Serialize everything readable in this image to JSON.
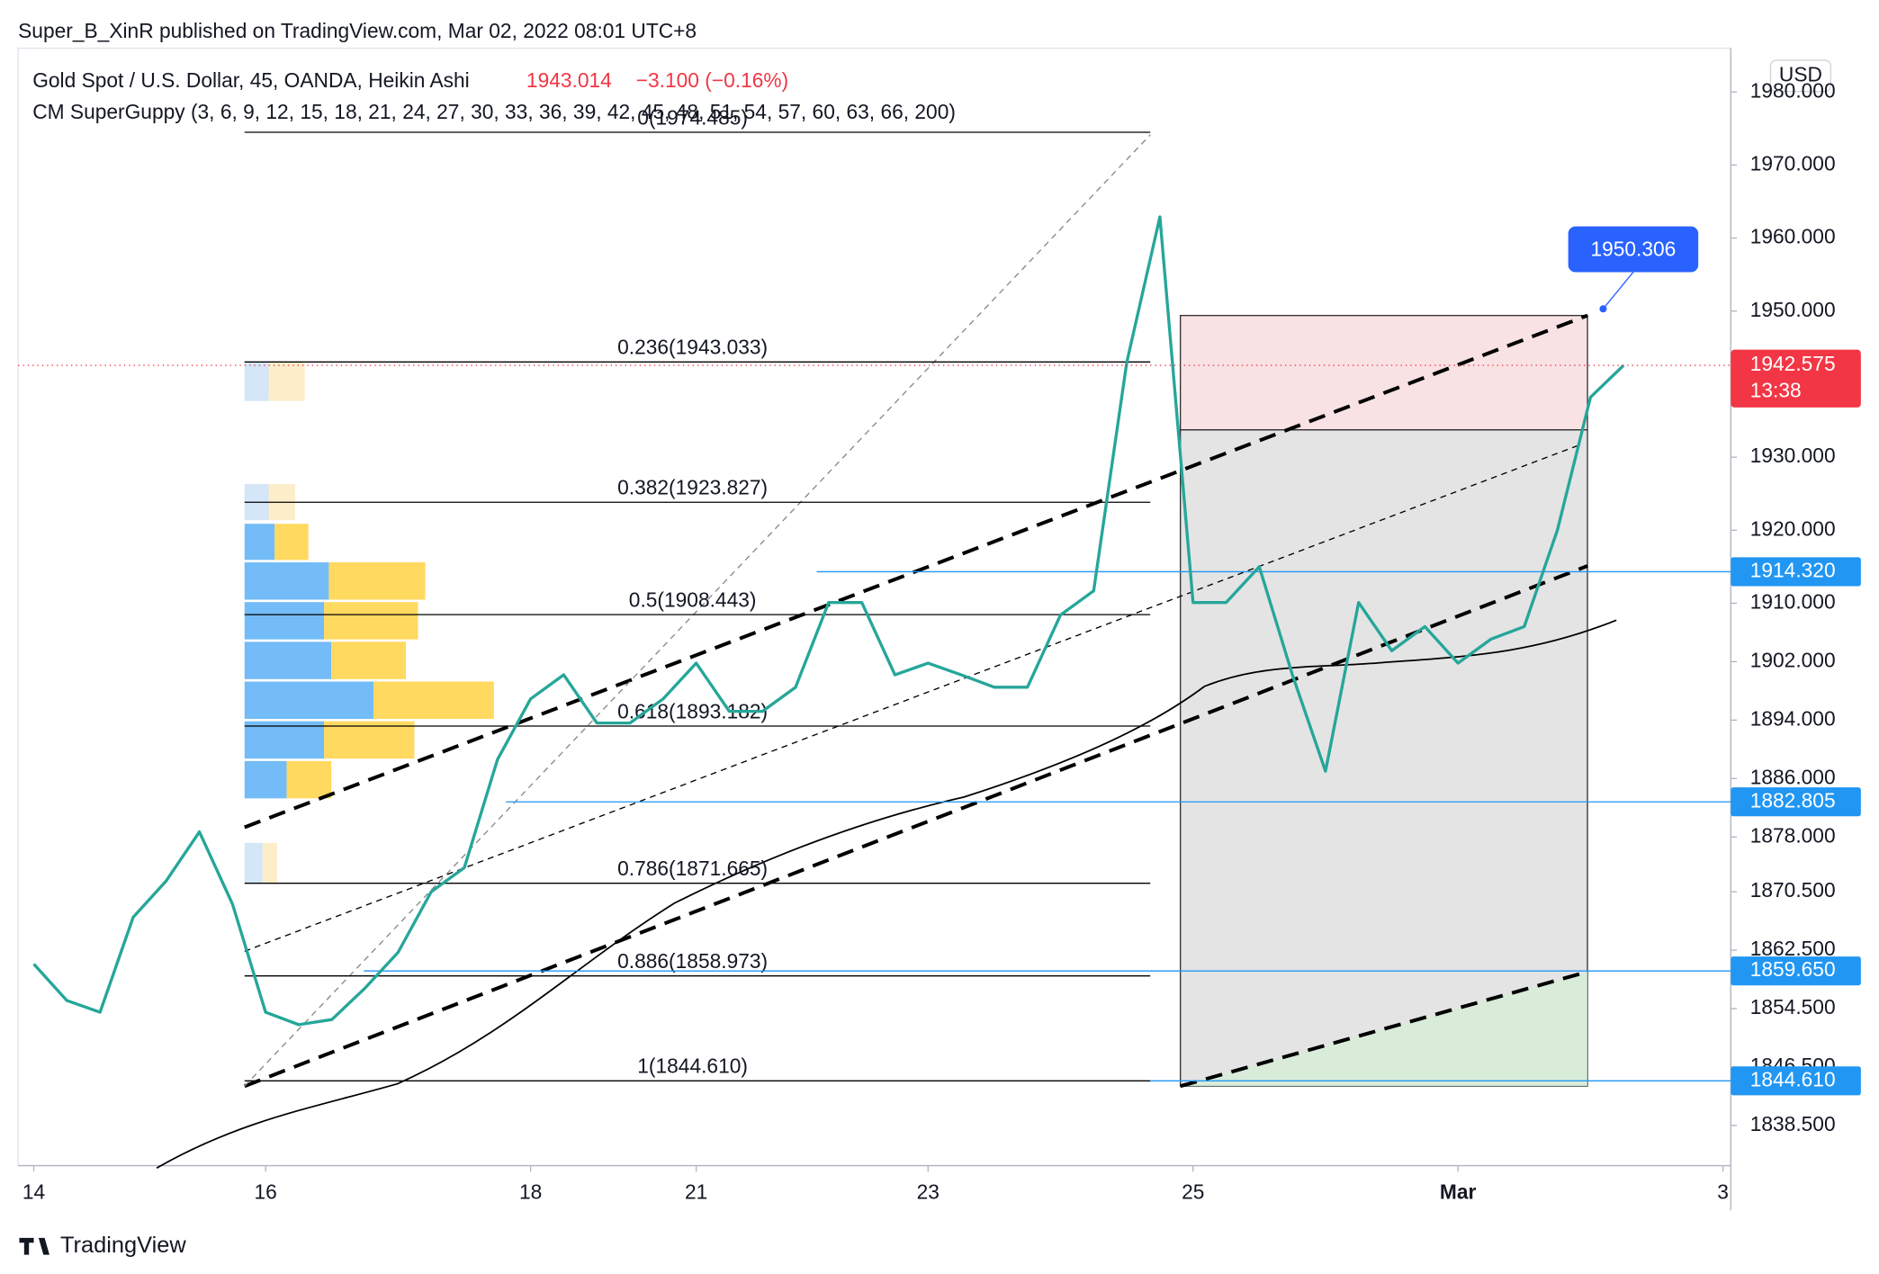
{
  "chart_data": {
    "type": "line",
    "header": "Super_B_XinR published on TradingView.com, Mar 02, 2022 08:01 UTC+8",
    "title": "Gold Spot / U.S. Dollar, 45, OANDA, Heikin Ashi",
    "price": 1943.014,
    "change": "−3.100 (−0.16%)",
    "indicator": "CM SuperGuppy (3, 6, 9, 12, 15, 18, 21, 24, 27, 30, 33, 36, 39, 42, 45, 48, 51, 54, 57, 60, 63, 66, 200)",
    "currency": "USD",
    "footer": "TradingView",
    "categories": [
      "14",
      null,
      null,
      null,
      null,
      null,
      null,
      "16",
      null,
      null,
      null,
      null,
      null,
      null,
      null,
      "18",
      null,
      null,
      null,
      null,
      "21",
      null,
      null,
      null,
      null,
      null,
      null,
      "23",
      null,
      null,
      null,
      null,
      null,
      null,
      null,
      "25",
      null,
      null,
      null,
      null,
      null,
      null,
      null,
      "Mar",
      null,
      null,
      null,
      null,
      null,
      null,
      null,
      "3"
    ],
    "values": [
      1860.6,
      1855.6,
      1854,
      1867,
      1872,
      1878.7,
      1868.8,
      1854,
      1852.3,
      1853,
      1857.3,
      1862.2,
      1870.5,
      1873.8,
      1888.6,
      1896.9,
      1900.2,
      1893.6,
      1893.6,
      1896.9,
      1901.8,
      1895.2,
      1895.2,
      1898.5,
      1910.1,
      1910.1,
      1900.2,
      1901.8,
      1900.2,
      1898.5,
      1898.5,
      1908.4,
      1911.7,
      1943,
      1962.9,
      1910.1,
      1910.1,
      1915,
      1900.2,
      1887,
      1910.1,
      1903.5,
      1906.8,
      1901.8,
      1905.1,
      1906.8,
      1920,
      1938.2,
      1942.575,
      null,
      null,
      null
    ],
    "color": "#26a69a",
    "ylim": [
      1833,
      1986
    ],
    "yticks": [
      {
        "value": 1980,
        "label": "1980.000"
      },
      {
        "value": 1970,
        "label": "1970.000"
      },
      {
        "value": 1960,
        "label": "1960.000"
      },
      {
        "value": 1950,
        "label": "1950.000"
      },
      {
        "value": 1930,
        "label": "1930.000"
      },
      {
        "value": 1920,
        "label": "1920.000"
      },
      {
        "value": 1910,
        "label": "1910.000"
      },
      {
        "value": 1902,
        "label": "1902.000"
      },
      {
        "value": 1894,
        "label": "1894.000"
      },
      {
        "value": 1886,
        "label": "1886.000"
      },
      {
        "value": 1878,
        "label": "1878.000"
      },
      {
        "value": 1870.5,
        "label": "1870.500"
      },
      {
        "value": 1862.5,
        "label": "1862.500"
      },
      {
        "value": 1854.5,
        "label": "1854.500"
      },
      {
        "value": 1846.5,
        "label": "1846.500"
      },
      {
        "value": 1838.5,
        "label": "1838.500"
      }
    ],
    "fib_levels": [
      {
        "label": "0(1974.485)",
        "value": 1974.485
      },
      {
        "label": "0.236(1943.033)",
        "value": 1943.033
      },
      {
        "label": "0.382(1923.827)",
        "value": 1923.827
      },
      {
        "label": "0.5(1908.443)",
        "value": 1908.443
      },
      {
        "label": "0.618(1893.182)",
        "value": 1893.182
      },
      {
        "label": "0.786(1871.665)",
        "value": 1871.665
      },
      {
        "label": "0.886(1858.973)",
        "value": 1858.973
      },
      {
        "label": "1(1844.610)",
        "value": 1844.61
      }
    ],
    "price_lines": [
      {
        "value": 1914.32,
        "label": "1914.320"
      },
      {
        "value": 1882.805,
        "label": "1882.805"
      },
      {
        "value": 1859.65,
        "label": "1859.650"
      },
      {
        "value": 1844.61,
        "label": "1844.610"
      }
    ],
    "last_price": 1942.575,
    "countdown": "13:38",
    "marker_price": 1950.306,
    "grid": false
  }
}
